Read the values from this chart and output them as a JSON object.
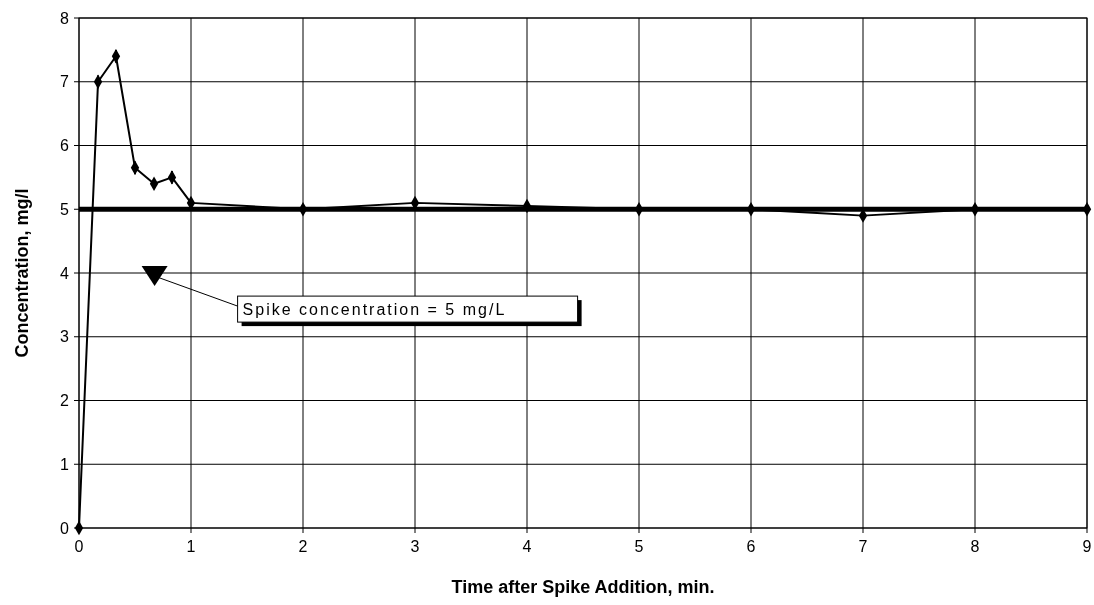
{
  "chart_data": {
    "type": "line",
    "xlabel": "Time after Spike Addition, min.",
    "ylabel": "Concentration, mg/l",
    "x": [
      0,
      0.17,
      0.33,
      0.5,
      0.67,
      0.83,
      1,
      2,
      3,
      4,
      5,
      6,
      7,
      8,
      9
    ],
    "series": [
      {
        "color": "#000000",
        "values": [
          0,
          7.0,
          7.4,
          5.65,
          5.4,
          5.5,
          5.1,
          5.0,
          5.1,
          5.05,
          5.0,
          5.0,
          4.9,
          5.0,
          5.0
        ],
        "errors": [
          null,
          0.1,
          0.1,
          0.1,
          null,
          0.1,
          null,
          null,
          null,
          null,
          null,
          null,
          null,
          null,
          null
        ]
      }
    ],
    "xlim": [
      0,
      9
    ],
    "xticks": [
      0,
      1,
      2,
      3,
      4,
      5,
      6,
      7,
      8,
      9
    ],
    "ylim": [
      0,
      8
    ],
    "yticks": [
      0,
      1,
      2,
      3,
      4,
      5,
      6,
      7,
      8
    ],
    "grid": true,
    "marker": "diamond",
    "line_style": "solid",
    "ref_lines": [
      {
        "axis": "y",
        "value": 5,
        "color": "#000000"
      }
    ],
    "annotations": [
      "Spike concentration = 5 mg/L"
    ]
  }
}
